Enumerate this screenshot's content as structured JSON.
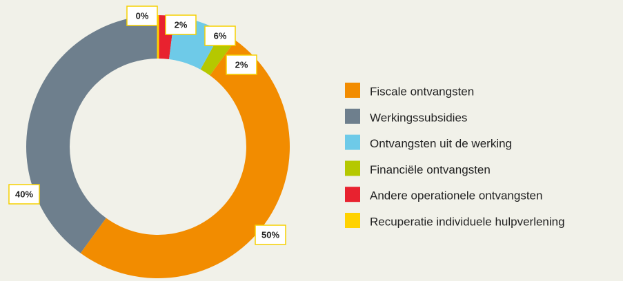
{
  "chart_data": {
    "type": "donut",
    "values": [
      2,
      6,
      2,
      50,
      40,
      0
    ],
    "value_labels": [
      "2%",
      "6%",
      "2%",
      "50%",
      "40%",
      "0%"
    ],
    "colors": [
      "#e8222f",
      "#6ecae8",
      "#b5c800",
      "#f28c00",
      "#6e7f8d",
      "#ffd200"
    ],
    "legend": [
      {
        "name": "Fiscale ontvangsten",
        "color": "#f28c00"
      },
      {
        "name": "Werkingssubsidies",
        "color": "#6e7f8d"
      },
      {
        "name": "Ontvangsten uit de werking",
        "color": "#6ecae8"
      },
      {
        "name": "Financiële ontvangsten",
        "color": "#b5c800"
      },
      {
        "name": "Andere operationele ontvangsten",
        "color": "#e8222f"
      },
      {
        "name": "Recuperatie individuele hulpverlening",
        "color": "#ffd200"
      }
    ]
  }
}
